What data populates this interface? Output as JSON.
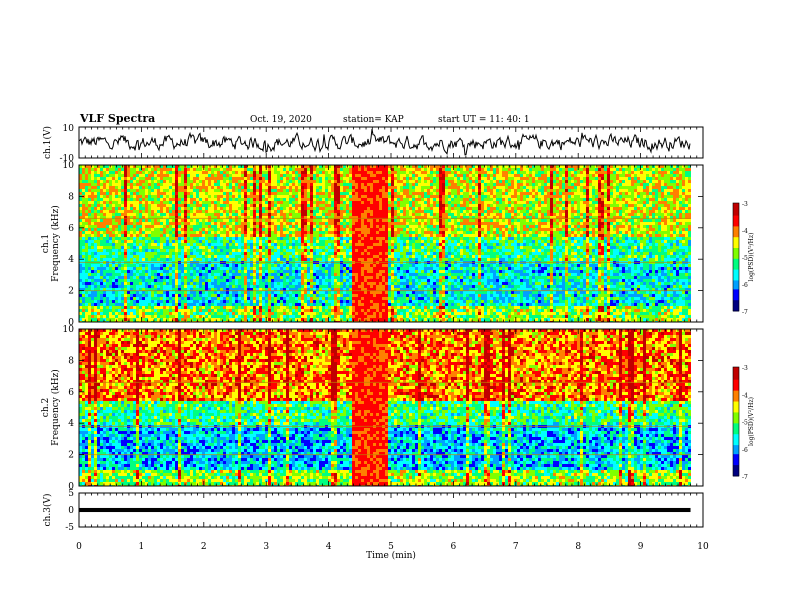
{
  "header": {
    "title": "VLF Spectra",
    "date": "Oct. 19, 2020",
    "station": "station= KAP",
    "start": "start  UT =   11: 40: 1"
  },
  "chart_data": [
    {
      "type": "line",
      "name_label": "ch.1(V)",
      "ylabel": "ch.1(V)",
      "ylim": [
        -10,
        10
      ],
      "yticks": [
        "10",
        "-10"
      ],
      "xlim": [
        0,
        10
      ],
      "x_unit": "min",
      "series": [
        {
          "values_note": "",
          "samples_visible_range": [
            -8,
            8
          ]
        }
      ]
    },
    {
      "type": "heatmap",
      "ylabel_channel": "ch.1",
      "ylabel": "Frequency (kHz)",
      "ylim": [
        0,
        10
      ],
      "yticks": [
        "0",
        "2",
        "4",
        "6",
        "8",
        "10"
      ],
      "xlim": [
        0,
        9.8
      ],
      "colorbar": {
        "label": "log(PSD)(V²/Hz)",
        "range": [
          -7,
          -3
        ],
        "ticks": [
          "-3",
          "-4",
          "-5",
          "-6",
          "-7"
        ]
      },
      "bright_band_min": [
        4.35,
        4.95
      ]
    },
    {
      "type": "heatmap",
      "ylabel_channel": "ch.2",
      "ylabel": "Frequency (kHz)",
      "ylim": [
        0,
        10
      ],
      "yticks": [
        "0",
        "2",
        "4",
        "6",
        "8",
        "10"
      ],
      "xlim": [
        0,
        9.8
      ],
      "colorbar": {
        "label": "log(PSD)(V²/Hz)",
        "range": [
          -7,
          -3
        ],
        "ticks": [
          "-3",
          "-4",
          "-5",
          "-6",
          "-7"
        ]
      },
      "bright_band_min": [
        4.35,
        4.95
      ]
    },
    {
      "type": "line",
      "ylabel": "ch.3(V)",
      "ylim": [
        -5,
        5
      ],
      "yticks": [
        "5",
        "0",
        "-5"
      ],
      "xlim": [
        0,
        10
      ],
      "xlabel": "Time (min)",
      "xticks": [
        "0",
        "1",
        "2",
        "3",
        "4",
        "5",
        "6",
        "7",
        "8",
        "9",
        "10"
      ],
      "series": [
        {
          "constant_value": 0
        }
      ]
    }
  ],
  "colors": {
    "scale": [
      "#000080",
      "#0000ff",
      "#00a0ff",
      "#00ffff",
      "#00ff80",
      "#80ff00",
      "#ffff00",
      "#ff8000",
      "#ff0000",
      "#c00000"
    ]
  }
}
